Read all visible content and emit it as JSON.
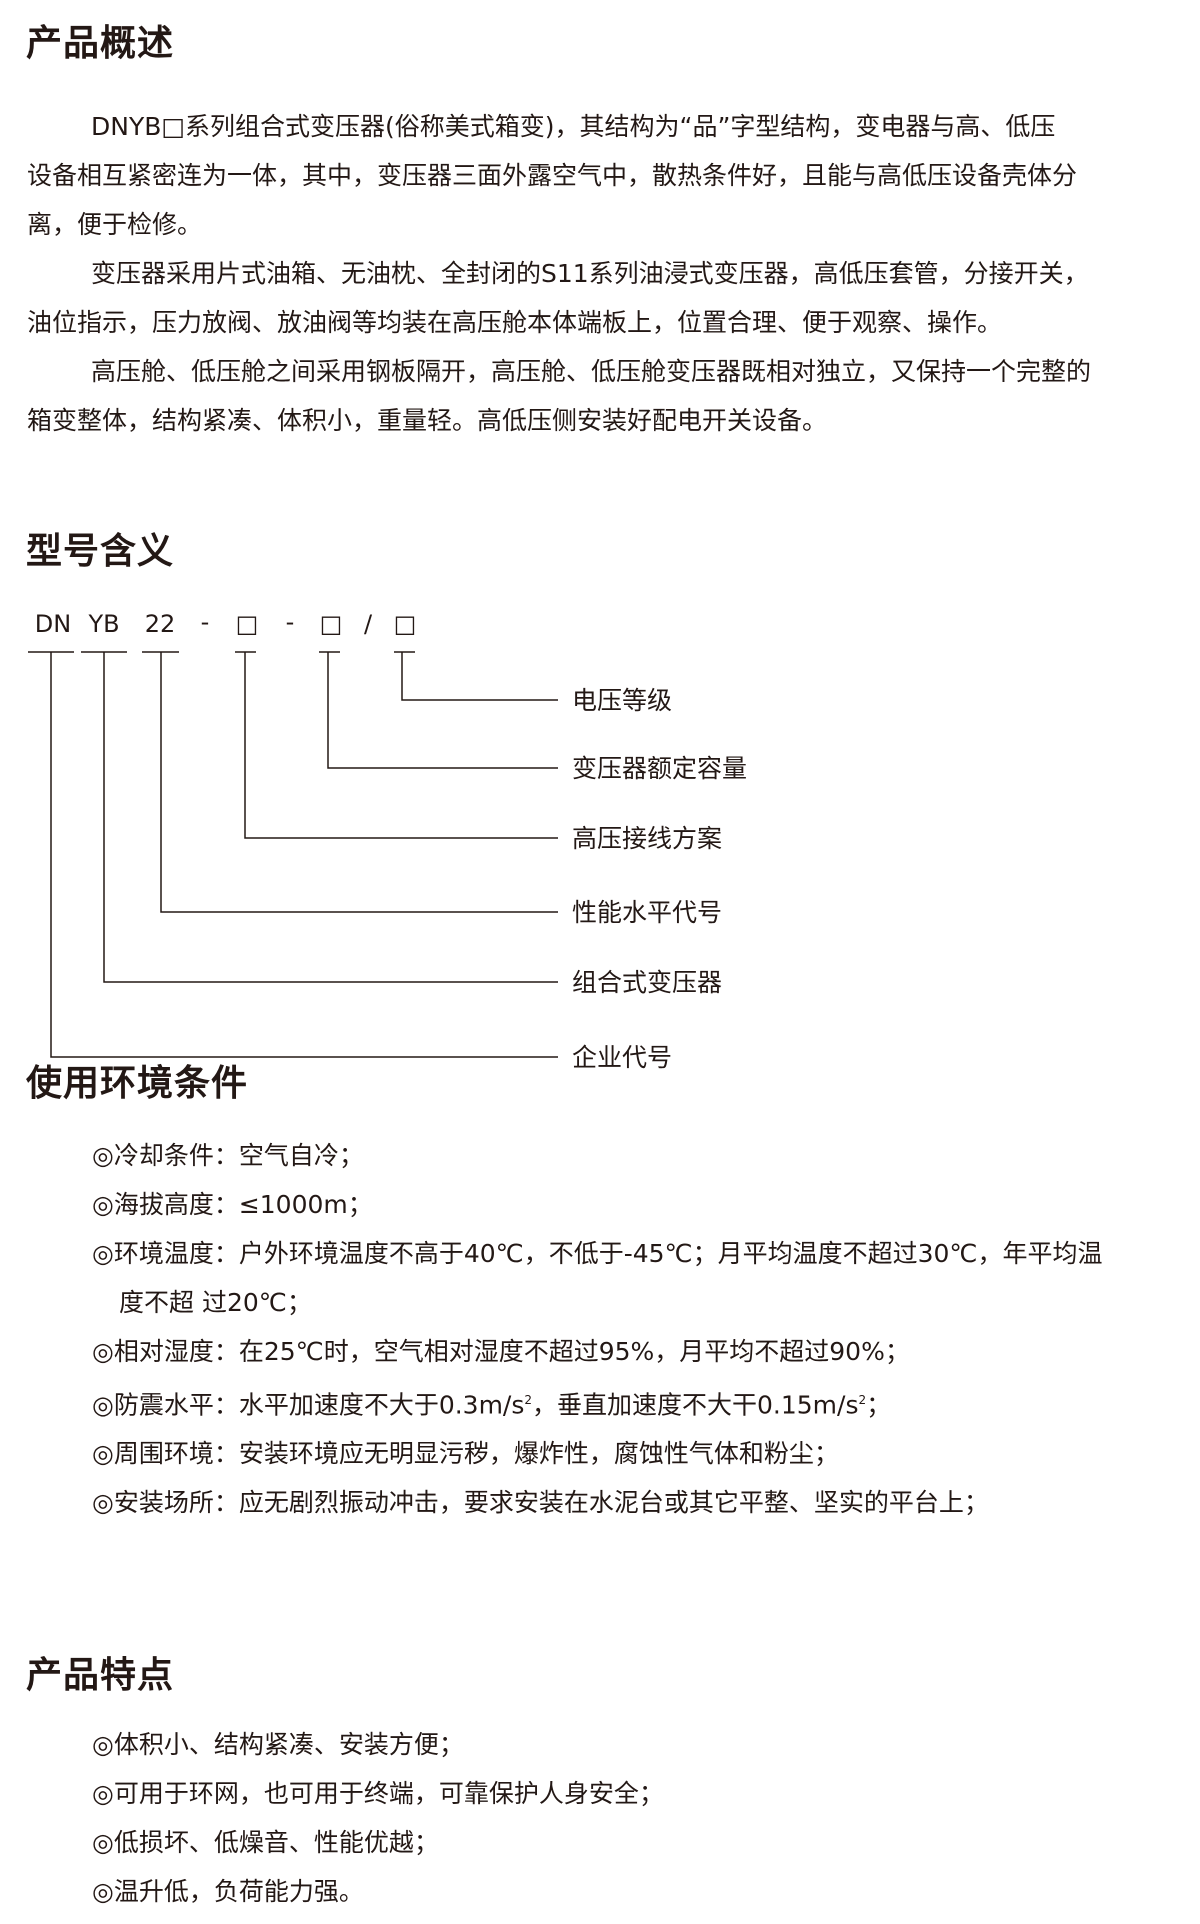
{
  "overview": {
    "title": "产品概述",
    "paragraphs": [
      [
        "DNYB□系列组合式变压器(俗称美式箱变)，其结构为“品”字型结构，变电器与高、低压",
        "设备相互紧密连为一体，其中，变压器三面外露空气中，散热条件好，且能与高低压设备壳体分",
        "离，便于检修。"
      ],
      [
        "变压器采用片式油箱、无油枕、全封闭的S11系列油浸式变压器，高低压套管，分接开关，",
        "油位指示，压力放阀、放油阀等均装在高压舱本体端板上，位置合理、便于观察、操作。"
      ],
      [
        "高压舱、低压舱之间采用钢板隔开，高压舱、低压舱变压器既相对独立，又保持一个完整的",
        "箱变整体，结构紧凑、体积小，重量轻。高低压侧安装好配电开关设备。"
      ]
    ]
  },
  "model": {
    "title": "型号含义",
    "code_parts": [
      "DN",
      "YB",
      "22",
      "-",
      "□",
      "-",
      "□",
      "/",
      "□"
    ],
    "labels": [
      "电压等级",
      "变压器额定容量",
      "高压接线方案",
      "性能水平代号",
      "组合式变压器",
      "企业代号"
    ]
  },
  "environment": {
    "title": "使用环境条件",
    "items": [
      "◎冷却条件：空气自冷；",
      "◎海拔高度：≤1000m；",
      "◎环境温度：户外环境温度不高于40℃，不低于-45℃；月平均温度不超过30℃，年平均温",
      "度不超 过20℃；",
      "◎相对湿度：在25℃时，空气相对湿度不超过95%，月平均不超过90%；",
      "◎防震水平：水平加速度不大于0.3m/s",
      "2",
      "，垂直加速度不大干0.15m/s",
      "2",
      "；",
      "◎周围环境：安装环境应无明显污秽，爆炸性，腐蚀性气体和粉尘；",
      "◎安装场所：应无剧烈振动冲击，要求安装在水泥台或其它平整、坚实的平台上；"
    ]
  },
  "features": {
    "title": "产品特点",
    "items": [
      "◎体积小、结构紧凑、安装方便；",
      "◎可用于环网，也可用于终端，可靠保护人身安全；",
      "◎低损坏、低燥音、性能优越；",
      "◎温升低，负荷能力强。"
    ]
  }
}
